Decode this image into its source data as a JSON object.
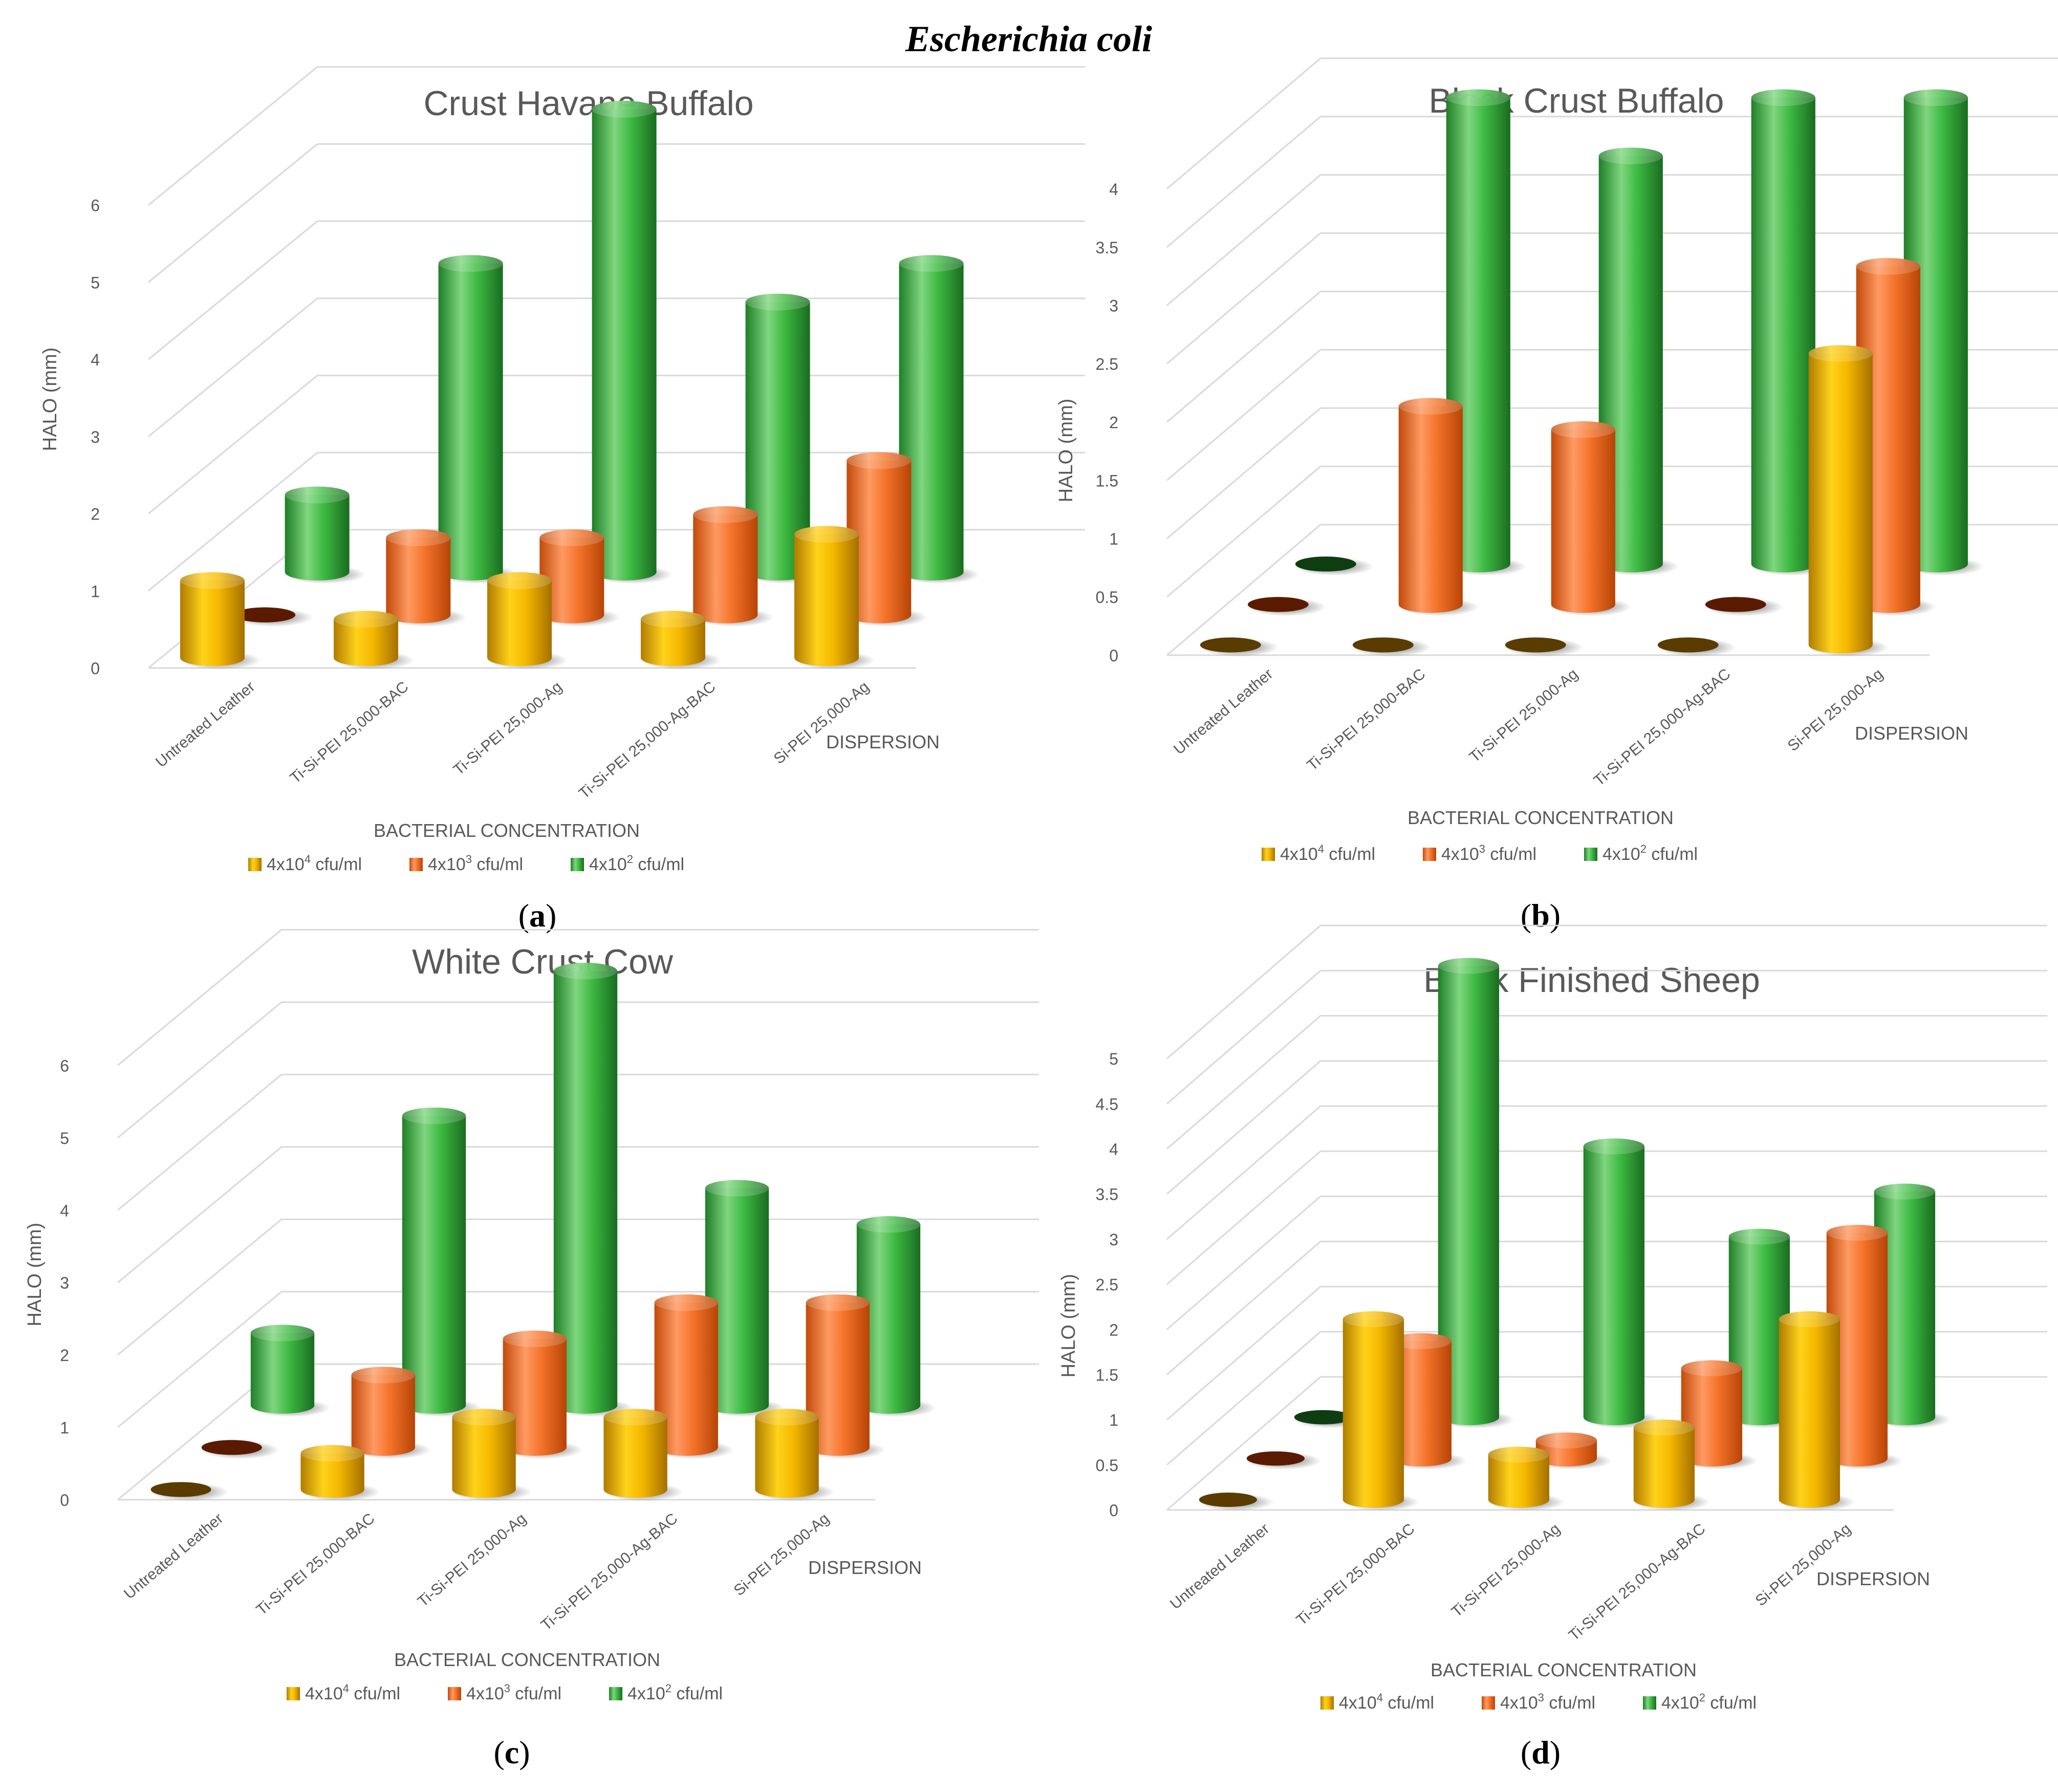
{
  "figure": {
    "title": "Escherichia coli",
    "captions": [
      {
        "open": "(",
        "letter": "a",
        "close": ")"
      },
      {
        "open": "(",
        "letter": "b",
        "close": ")"
      },
      {
        "open": "(",
        "letter": "c",
        "close": ")"
      },
      {
        "open": "(",
        "letter": "d",
        "close": ")"
      }
    ]
  },
  "colors": {
    "yellow": "#f2b705",
    "orange": "#f06a1c",
    "green": "#2fae38",
    "grid": "#d9d9d9",
    "axis_text": "#595959",
    "title_text": "#595959"
  },
  "chart_data": [
    {
      "type": "bar",
      "style": "3d-cylinder",
      "title": "Crust Havane Buffalo",
      "ylabel": "HALO (mm)",
      "xlabel": "BACTERIAL CONCENTRATION",
      "depth_label": "DISPERSION",
      "ylim": [
        0,
        7
      ],
      "yticks": [
        "0",
        "1",
        "2",
        "3",
        "4",
        "5",
        "6"
      ],
      "categories": [
        "Untreated Leather",
        "Ti-Si-PEI 25,000-BAC",
        "Ti-Si-PEI 25,000-Ag",
        "Ti-Si-PEI 25,000-Ag-BAC",
        "Si-PEI 25,000-Ag"
      ],
      "series": [
        {
          "name": "4x10⁴ cfu/ml",
          "color": "yellow",
          "values": [
            1.0,
            0.5,
            1.0,
            0.5,
            1.6
          ]
        },
        {
          "name": "4x10³ cfu/ml",
          "color": "orange",
          "values": [
            0.0,
            1.0,
            1.0,
            1.3,
            2.0
          ]
        },
        {
          "name": "4x10² cfu/ml",
          "color": "green",
          "values": [
            1.0,
            4.0,
            6.0,
            3.5,
            4.0
          ]
        }
      ],
      "legend": {
        "position": "bottom",
        "items": [
          {
            "base": "4x10",
            "exp": "4",
            "unit": " cfu/ml"
          },
          {
            "base": "4x10",
            "exp": "3",
            "unit": " cfu/ml"
          },
          {
            "base": "4x10",
            "exp": "2",
            "unit": " cfu/ml"
          }
        ]
      }
    },
    {
      "type": "bar",
      "style": "3d-cylinder",
      "title": "Black Crust Buffalo",
      "ylabel": "HALO (mm)",
      "xlabel": "BACTERIAL CONCENTRATION",
      "depth_label": "DISPERSION",
      "ylim": [
        0,
        4.5
      ],
      "yticks": [
        "0",
        "0.5",
        "1",
        "1.5",
        "2",
        "2.5",
        "3",
        "3.5",
        "4"
      ],
      "categories": [
        "Untreated Leather",
        "Ti-Si-PEI 25,000-BAC",
        "Ti-Si-PEI 25,000-Ag",
        "Ti-Si-PEI 25,000-Ag-BAC",
        "Si-PEI 25,000-Ag"
      ],
      "series": [
        {
          "name": "4x10⁴ cfu/ml",
          "color": "yellow",
          "values": [
            0.0,
            0.0,
            0.0,
            0.0,
            2.5
          ]
        },
        {
          "name": "4x10³ cfu/ml",
          "color": "orange",
          "values": [
            0.0,
            1.7,
            1.5,
            0.0,
            2.9
          ]
        },
        {
          "name": "4x10² cfu/ml",
          "color": "green",
          "values": [
            0.0,
            4.0,
            3.5,
            4.0,
            4.0
          ]
        }
      ],
      "legend": {
        "position": "bottom",
        "items": [
          {
            "base": "4x10",
            "exp": "4",
            "unit": " cfu/ml"
          },
          {
            "base": "4x10",
            "exp": "3",
            "unit": " cfu/ml"
          },
          {
            "base": "4x10",
            "exp": "2",
            "unit": " cfu/ml"
          }
        ]
      }
    },
    {
      "type": "bar",
      "style": "3d-cylinder",
      "title": "White Crust Cow",
      "ylabel": "HALO (mm)",
      "xlabel": "BACTERIAL CONCENTRATION",
      "depth_label": "DISPERSION",
      "ylim": [
        0,
        7
      ],
      "yticks": [
        "0",
        "1",
        "2",
        "3",
        "4",
        "5",
        "6"
      ],
      "categories": [
        "Untreated Leather",
        "Ti-Si-PEI 25,000-BAC",
        "Ti-Si-PEI 25,000-Ag",
        "Ti-Si-PEI 25,000-Ag-BAC",
        "Si-PEI 25,000-Ag"
      ],
      "series": [
        {
          "name": "4x10⁴ cfu/ml",
          "color": "yellow",
          "values": [
            0.0,
            0.5,
            1.0,
            1.0,
            1.0
          ]
        },
        {
          "name": "4x10³ cfu/ml",
          "color": "orange",
          "values": [
            0.0,
            1.0,
            1.5,
            2.0,
            2.0
          ]
        },
        {
          "name": "4x10² cfu/ml",
          "color": "green",
          "values": [
            1.0,
            4.0,
            6.0,
            3.0,
            2.5
          ]
        }
      ],
      "legend": {
        "position": "bottom",
        "items": [
          {
            "base": "4x10",
            "exp": "4",
            "unit": " cfu/ml"
          },
          {
            "base": "4x10",
            "exp": "3",
            "unit": " cfu/ml"
          },
          {
            "base": "4x10",
            "exp": "2",
            "unit": " cfu/ml"
          }
        ]
      }
    },
    {
      "type": "bar",
      "style": "3d-cylinder",
      "title": "Black Finished Sheep",
      "ylabel": "HALO (mm)",
      "xlabel": "BACTERIAL CONCENTRATION",
      "depth_label": "DISPERSION",
      "ylim": [
        0,
        5.5
      ],
      "yticks": [
        "0",
        "0.5",
        "1",
        "1.5",
        "2",
        "2.5",
        "3",
        "3.5",
        "4",
        "4.5",
        "5"
      ],
      "categories": [
        "Untreated Leather",
        "Ti-Si-PEI 25,000-BAC",
        "Ti-Si-PEI 25,000-Ag",
        "Ti-Si-PEI 25,000-Ag-BAC",
        "Si-PEI 25,000-Ag"
      ],
      "series": [
        {
          "name": "4x10⁴ cfu/ml",
          "color": "yellow",
          "values": [
            0.0,
            2.0,
            0.5,
            0.8,
            2.0
          ]
        },
        {
          "name": "4x10³ cfu/ml",
          "color": "orange",
          "values": [
            0.0,
            1.3,
            0.2,
            1.0,
            2.5
          ]
        },
        {
          "name": "4x10² cfu/ml",
          "color": "green",
          "values": [
            0.0,
            5.0,
            3.0,
            2.0,
            2.5
          ]
        }
      ],
      "legend": {
        "position": "bottom",
        "items": [
          {
            "base": "4x10",
            "exp": "4",
            "unit": " cfu/ml"
          },
          {
            "base": "4x10",
            "exp": "3",
            "unit": " cfu/ml"
          },
          {
            "base": "4x10",
            "exp": "2",
            "unit": " cfu/ml"
          }
        ]
      }
    }
  ]
}
